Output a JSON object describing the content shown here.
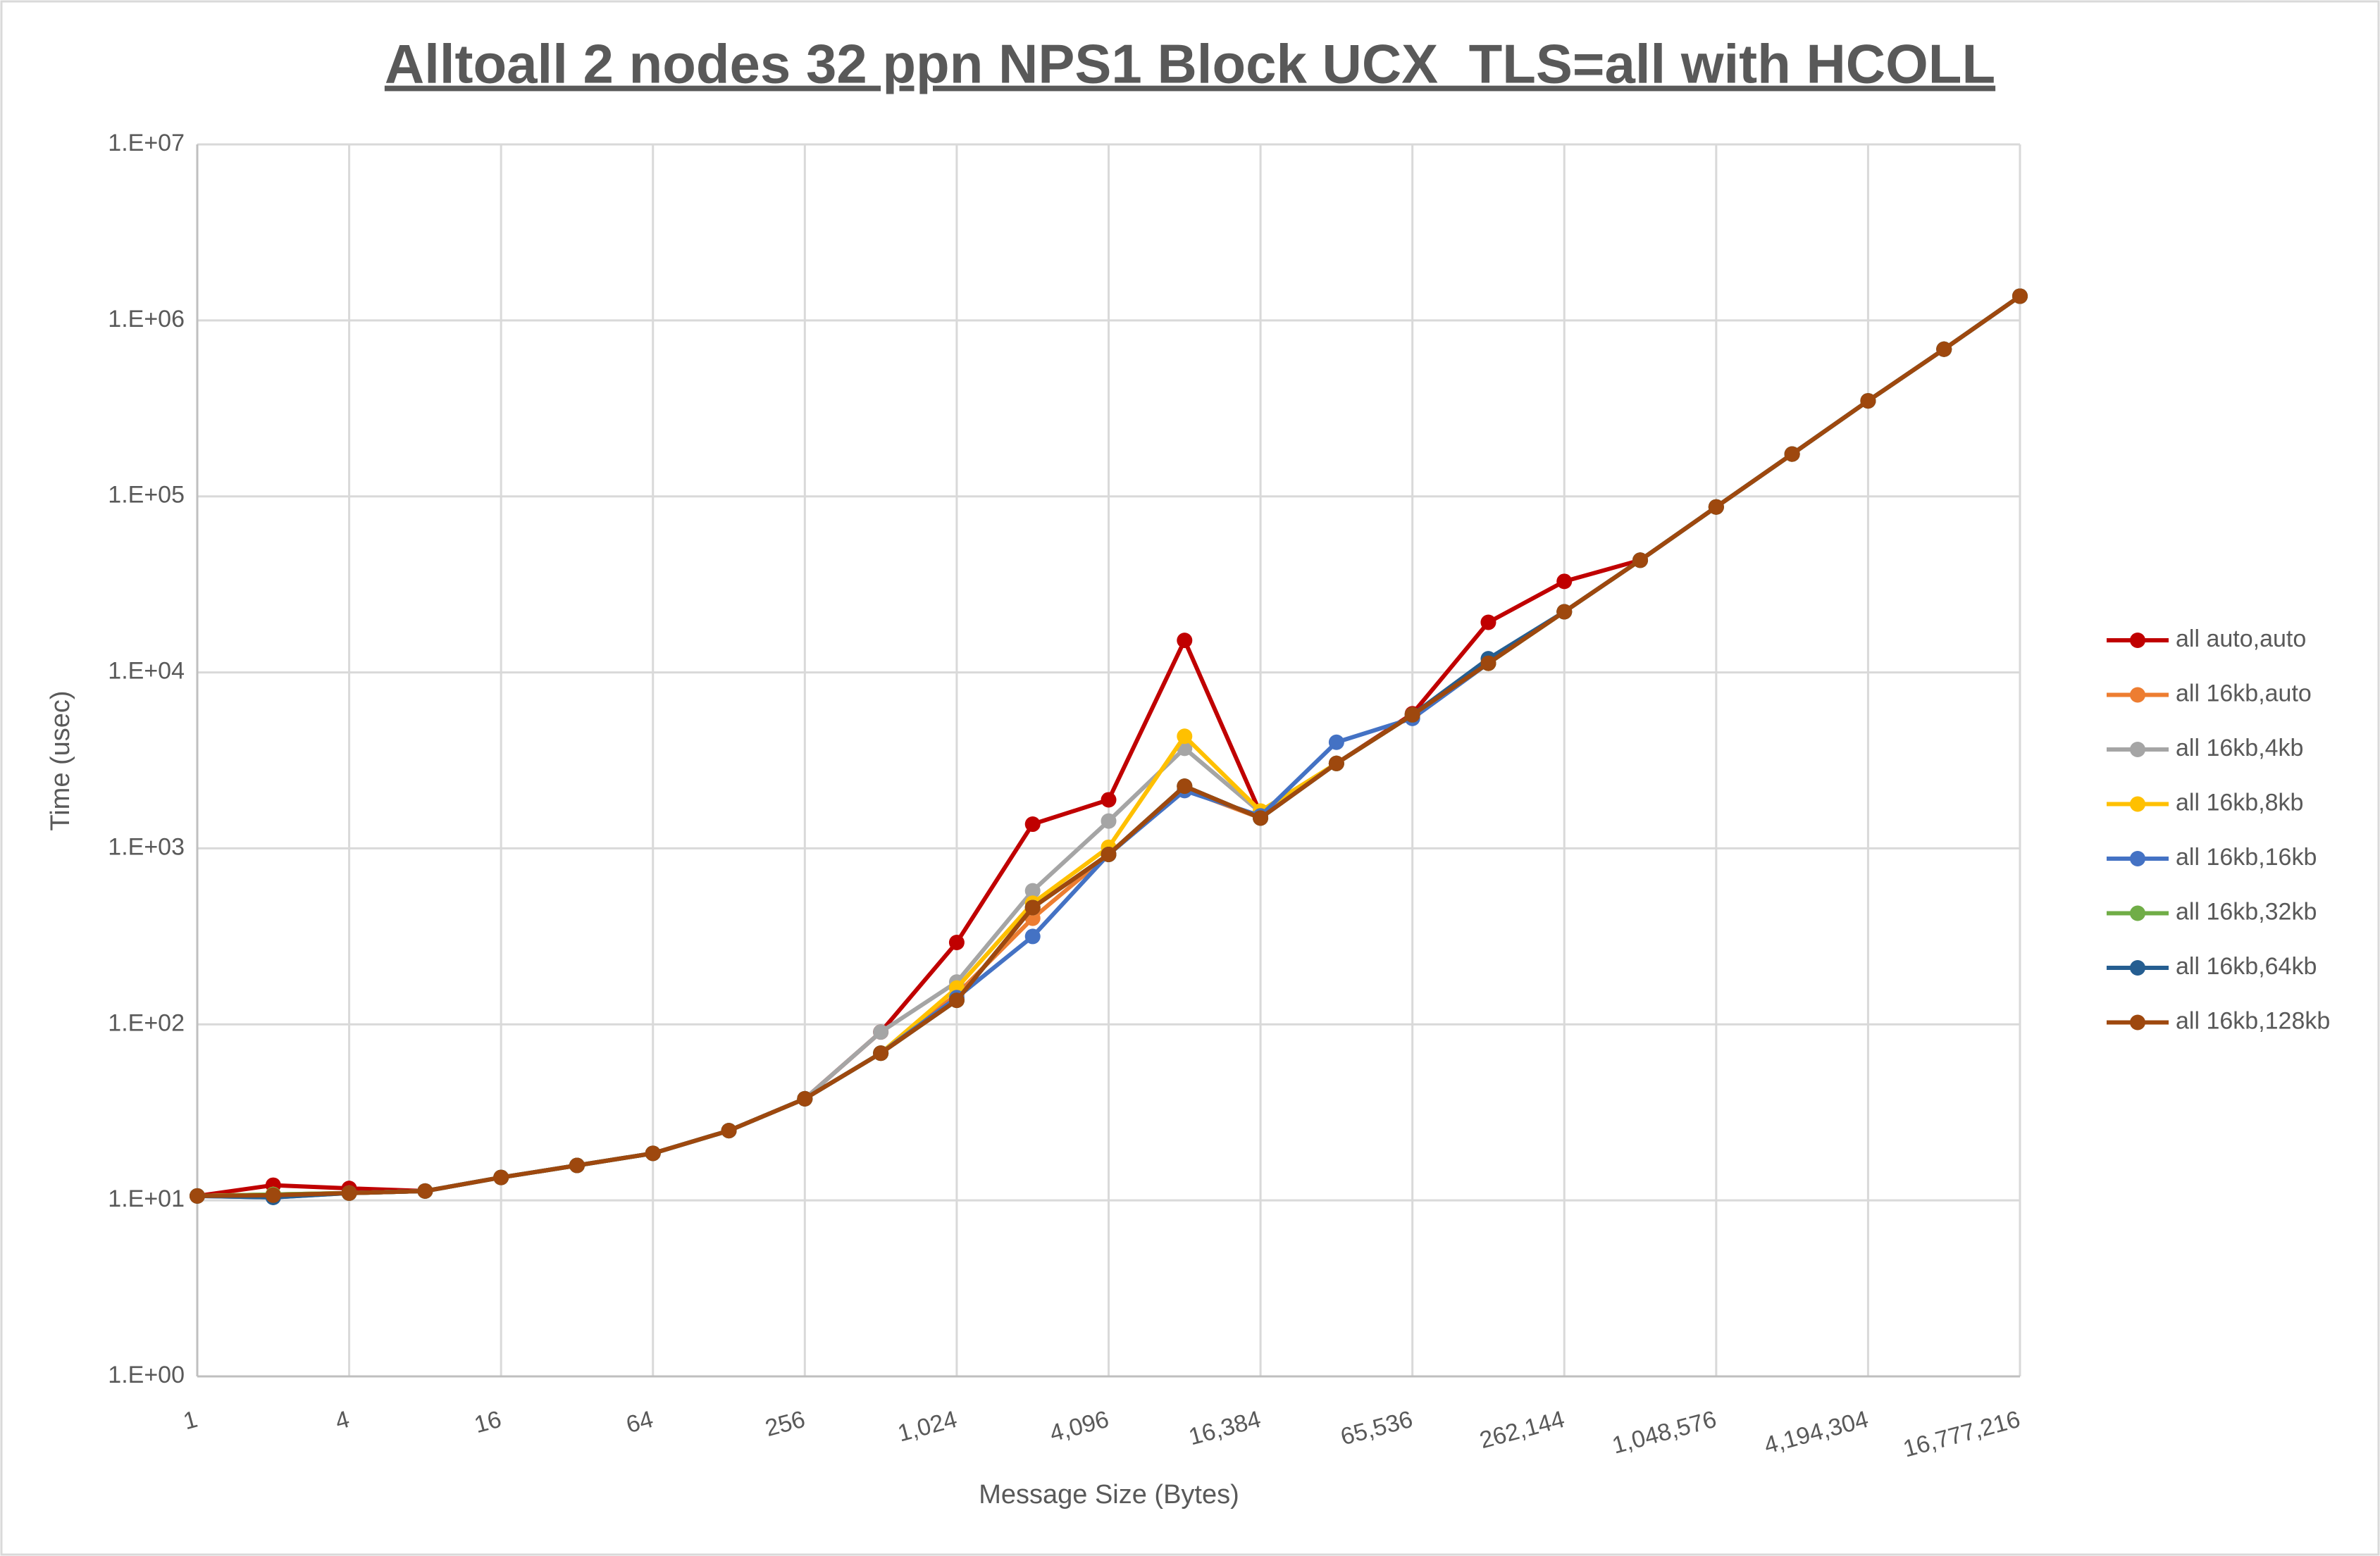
{
  "chart_data": {
    "type": "line",
    "title": "Alltoall 2 nodes 32 ppn NPS1 Block UCX_TLS=all with HCOLL",
    "x_label": "Message Size (Bytes)",
    "y_label": "Time (usec)",
    "x_log_base": 2,
    "y_log_base": 10,
    "grid": true,
    "legend": "right",
    "x": [
      1,
      2,
      4,
      8,
      16,
      32,
      64,
      128,
      256,
      512,
      1024,
      2048,
      4096,
      8192,
      16384,
      32768,
      65536,
      131072,
      262144,
      524288,
      1048576,
      2097152,
      4194304,
      8388608,
      16777216
    ],
    "xlim": [
      1,
      16777216
    ],
    "xticks": [
      1,
      4,
      16,
      64,
      256,
      {
        "value": 1024,
        "label": "1,024"
      },
      {
        "value": 4096,
        "label": "4,096"
      },
      {
        "value": 16384,
        "label": "16,384"
      },
      {
        "value": 65536,
        "label": "65,536"
      },
      {
        "value": 262144,
        "label": "262,144"
      },
      {
        "value": 1048576,
        "label": "1,048,576"
      },
      {
        "value": 4194304,
        "label": "4,194,304"
      },
      {
        "value": 16777216,
        "label": "16,777,216"
      }
    ],
    "ylim": [
      1,
      10000000
    ],
    "yticks": [
      {
        "value": 1,
        "label": "1.E+00"
      },
      {
        "value": 10,
        "label": "1.E+01"
      },
      {
        "value": 100,
        "label": "1.E+02"
      },
      {
        "value": 1000,
        "label": "1.E+03"
      },
      {
        "value": 10000,
        "label": "1.E+04"
      },
      {
        "value": 100000,
        "label": "1.E+05"
      },
      {
        "value": 1000000,
        "label": "1.E+06"
      },
      {
        "value": 10000000,
        "label": "1.E+07"
      }
    ],
    "series": [
      {
        "name": "all auto,auto",
        "color": "#c00000",
        "values": [
          10.6,
          12.2,
          11.7,
          11.3,
          13.5,
          15.8,
          18.5,
          24.9,
          37.8,
          90.5,
          292,
          1373,
          1888,
          15200,
          1578,
          3040,
          5820,
          19250,
          32900,
          43400,
          87100,
          174000,
          349000,
          686000,
          1373000
        ]
      },
      {
        "name": "all 16kb,auto",
        "color": "#ed7d31",
        "values": [
          10.6,
          10.8,
          11.0,
          11.3,
          13.5,
          15.8,
          18.5,
          24.9,
          37.8,
          68.6,
          148,
          401,
          924,
          2158,
          1487,
          3040,
          5740,
          11270,
          22100,
          43400,
          87100,
          174000,
          349000,
          686000,
          1373000
        ]
      },
      {
        "name": "all 16kb,4kb",
        "color": "#a5a5a5",
        "values": [
          10.6,
          10.8,
          11.0,
          11.3,
          13.5,
          15.8,
          18.5,
          24.9,
          37.8,
          90.5,
          174,
          574,
          1430,
          3705,
          1600,
          3040,
          5740,
          11270,
          22100,
          43400,
          87100,
          174000,
          349000,
          686000,
          1373000
        ]
      },
      {
        "name": "all 16kb,8kb",
        "color": "#ffc000",
        "values": [
          10.6,
          10.8,
          11.0,
          11.3,
          13.5,
          15.8,
          18.5,
          24.9,
          37.8,
          68.6,
          161,
          488,
          1015,
          4336,
          1630,
          3040,
          5740,
          11270,
          22100,
          43400,
          87100,
          174000,
          349000,
          686000,
          1373000
        ]
      },
      {
        "name": "all 16kb,16kb",
        "color": "#4472c4",
        "values": [
          10.6,
          10.4,
          11.0,
          11.3,
          13.5,
          15.8,
          18.5,
          24.9,
          37.8,
          68.6,
          142,
          316,
          924,
          2130,
          1530,
          4010,
          5480,
          11270,
          22100,
          43400,
          87100,
          174000,
          349000,
          686000,
          1373000
        ]
      },
      {
        "name": "all 16kb,32kb",
        "color": "#70ad47",
        "values": [
          10.6,
          10.8,
          11.0,
          11.3,
          13.5,
          15.8,
          18.5,
          24.9,
          37.8,
          68.6,
          137,
          461,
          924,
          2256,
          1487,
          3040,
          5740,
          11270,
          22100,
          43400,
          87100,
          174000,
          349000,
          686000,
          1373000
        ]
      },
      {
        "name": "all 16kb,64kb",
        "color": "#255e91",
        "values": [
          10.6,
          10.4,
          11.0,
          11.3,
          13.5,
          15.8,
          18.5,
          24.9,
          37.8,
          68.6,
          137,
          461,
          924,
          2256,
          1487,
          3040,
          5740,
          11960,
          22100,
          43400,
          87100,
          174000,
          349000,
          686000,
          1373000
        ]
      },
      {
        "name": "all 16kb,128kb",
        "color": "#9e480e",
        "values": [
          10.6,
          10.7,
          11.0,
          11.3,
          13.5,
          15.8,
          18.5,
          24.9,
          37.8,
          68.6,
          137,
          461,
          924,
          2256,
          1487,
          3040,
          5740,
          11270,
          22100,
          43400,
          87100,
          174000,
          349000,
          686000,
          1373000
        ]
      }
    ]
  }
}
